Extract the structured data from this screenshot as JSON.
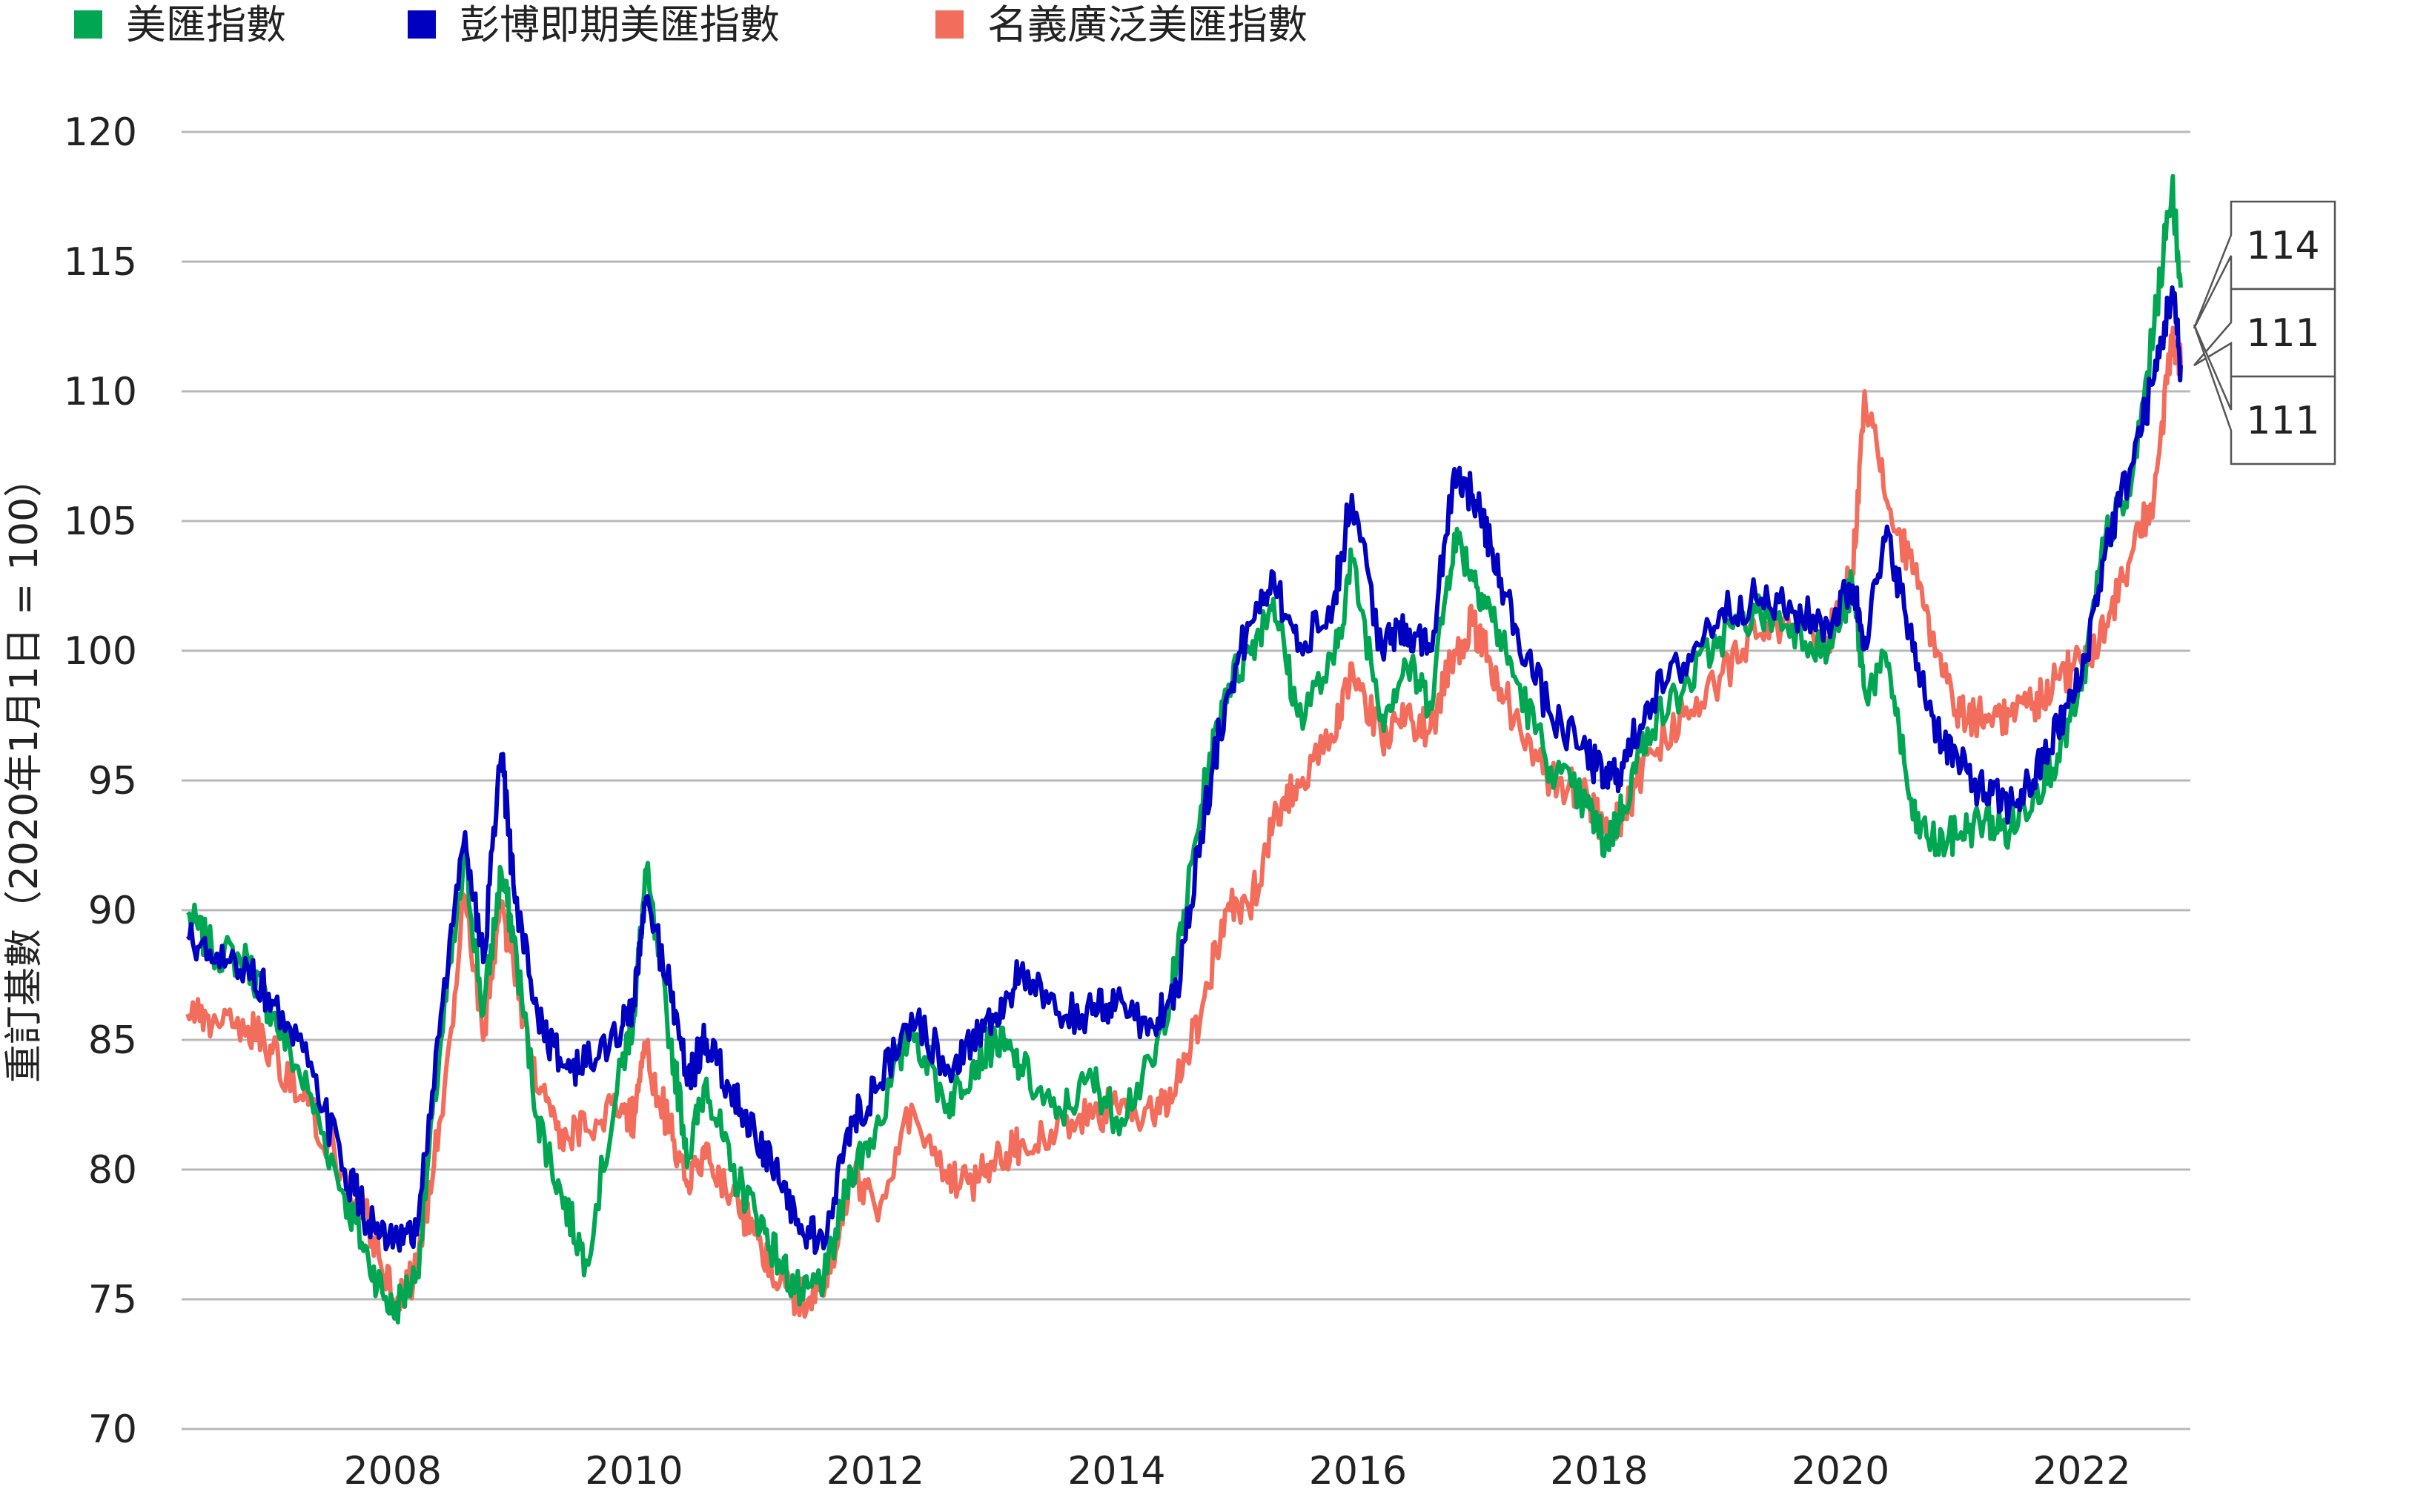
{
  "chart_data": {
    "type": "line",
    "ylabel": "重訂基數（2020年1月1日 = 100）",
    "ylim": [
      70,
      120
    ],
    "yticks": [
      70,
      75,
      80,
      85,
      90,
      95,
      100,
      105,
      110,
      115,
      120
    ],
    "xlim": [
      2006.25,
      2022.9
    ],
    "xticks": [
      2008,
      2010,
      2012,
      2014,
      2016,
      2018,
      2020,
      2022
    ],
    "grid": true,
    "legend_position": "top-left",
    "series": [
      {
        "name": "美匯指數",
        "color": "#00A651",
        "x": [
          2006.3,
          2006.5,
          2006.8,
          2007.0,
          2007.3,
          2007.6,
          2007.8,
          2008.0,
          2008.2,
          2008.4,
          2008.6,
          2008.75,
          2008.9,
          2009.0,
          2009.2,
          2009.4,
          2009.6,
          2009.9,
          2010.0,
          2010.1,
          2010.3,
          2010.45,
          2010.6,
          2010.8,
          2011.0,
          2011.2,
          2011.4,
          2011.6,
          2011.8,
          2012.0,
          2012.3,
          2012.6,
          2012.8,
          2013.0,
          2013.2,
          2013.5,
          2013.8,
          2014.0,
          2014.3,
          2014.5,
          2014.7,
          2014.9,
          2015.1,
          2015.3,
          2015.5,
          2015.8,
          2015.95,
          2016.2,
          2016.4,
          2016.6,
          2016.8,
          2016.95,
          2017.1,
          2017.3,
          2017.6,
          2017.9,
          2018.05,
          2018.2,
          2018.4,
          2018.7,
          2019.0,
          2019.3,
          2019.6,
          2019.9,
          2020.1,
          2020.2,
          2020.4,
          2020.6,
          2020.8,
          2021.0,
          2021.2,
          2021.4,
          2021.6,
          2021.8,
          2022.0,
          2022.2,
          2022.4,
          2022.6,
          2022.75,
          2022.82
        ],
        "values": [
          89.8,
          88.5,
          88.0,
          86.0,
          83.0,
          79.0,
          76.5,
          74.5,
          76.0,
          85.0,
          92.0,
          86.0,
          91.5,
          89.0,
          82.0,
          79.0,
          76.5,
          84.0,
          86.0,
          91.5,
          85.0,
          80.5,
          83.5,
          80.0,
          78.5,
          76.5,
          75.0,
          76.0,
          80.0,
          81.5,
          85.5,
          82.5,
          84.0,
          85.0,
          84.0,
          82.0,
          83.5,
          82.0,
          84.0,
          88.0,
          94.0,
          98.5,
          100.0,
          102.0,
          97.5,
          99.5,
          103.5,
          97.5,
          99.5,
          98.0,
          104.5,
          103.0,
          101.5,
          99.0,
          95.5,
          94.0,
          92.5,
          94.0,
          97.0,
          98.5,
          100.5,
          101.5,
          101.0,
          100.0,
          102.5,
          98.5,
          99.5,
          93.5,
          92.5,
          93.0,
          93.5,
          93.0,
          94.5,
          96.0,
          98.5,
          104.5,
          106.0,
          112.5,
          118.0,
          114.0
        ]
      },
      {
        "name": "彭博即期美匯指數",
        "color": "#0000C0",
        "x": [
          2006.3,
          2006.5,
          2006.8,
          2007.0,
          2007.3,
          2007.6,
          2007.8,
          2008.0,
          2008.2,
          2008.4,
          2008.6,
          2008.75,
          2008.9,
          2009.0,
          2009.2,
          2009.4,
          2009.6,
          2009.9,
          2010.0,
          2010.1,
          2010.3,
          2010.45,
          2010.6,
          2010.8,
          2011.0,
          2011.2,
          2011.4,
          2011.6,
          2011.8,
          2012.0,
          2012.3,
          2012.6,
          2012.8,
          2013.0,
          2013.2,
          2013.5,
          2013.8,
          2014.0,
          2014.3,
          2014.5,
          2014.7,
          2014.9,
          2015.1,
          2015.3,
          2015.5,
          2015.8,
          2015.95,
          2016.2,
          2016.4,
          2016.6,
          2016.8,
          2016.95,
          2017.1,
          2017.3,
          2017.6,
          2017.9,
          2018.05,
          2018.2,
          2018.4,
          2018.7,
          2019.0,
          2019.3,
          2019.6,
          2019.9,
          2020.1,
          2020.2,
          2020.4,
          2020.6,
          2020.8,
          2021.0,
          2021.2,
          2021.4,
          2021.6,
          2021.8,
          2022.0,
          2022.2,
          2022.4,
          2022.6,
          2022.75,
          2022.82
        ],
        "values": [
          89.0,
          88.0,
          87.8,
          86.5,
          84.0,
          80.0,
          78.0,
          77.0,
          77.5,
          86.0,
          93.0,
          88.0,
          96.0,
          91.0,
          86.0,
          84.0,
          84.0,
          85.5,
          86.5,
          90.5,
          87.0,
          83.5,
          85.0,
          83.0,
          81.5,
          79.5,
          77.5,
          77.5,
          82.0,
          83.0,
          86.0,
          84.0,
          85.0,
          86.0,
          87.5,
          86.0,
          86.0,
          86.5,
          85.5,
          87.0,
          93.0,
          98.0,
          101.0,
          103.0,
          100.0,
          102.0,
          106.0,
          100.0,
          101.0,
          100.0,
          107.0,
          106.0,
          104.0,
          101.0,
          97.5,
          96.0,
          95.0,
          95.5,
          98.0,
          99.5,
          101.5,
          102.0,
          101.5,
          101.0,
          102.5,
          100.5,
          104.5,
          100.0,
          97.0,
          95.5,
          94.5,
          94.0,
          95.0,
          97.0,
          99.0,
          104.0,
          107.0,
          110.5,
          114.0,
          111.0
        ]
      },
      {
        "name": "名義廣泛美匯指數",
        "color": "#F26D5B",
        "x": [
          2006.3,
          2006.5,
          2006.8,
          2007.0,
          2007.3,
          2007.6,
          2007.8,
          2008.0,
          2008.2,
          2008.4,
          2008.6,
          2008.75,
          2008.9,
          2009.0,
          2009.2,
          2009.4,
          2009.6,
          2009.9,
          2010.0,
          2010.1,
          2010.3,
          2010.45,
          2010.6,
          2010.8,
          2011.0,
          2011.2,
          2011.4,
          2011.6,
          2011.8,
          2012.0,
          2012.3,
          2012.6,
          2012.8,
          2013.0,
          2013.2,
          2013.5,
          2013.8,
          2014.0,
          2014.3,
          2014.5,
          2014.7,
          2014.9,
          2015.1,
          2015.3,
          2015.5,
          2015.8,
          2015.95,
          2016.2,
          2016.4,
          2016.6,
          2016.8,
          2016.95,
          2017.1,
          2017.3,
          2017.6,
          2017.9,
          2018.05,
          2018.2,
          2018.4,
          2018.7,
          2019.0,
          2019.3,
          2019.6,
          2019.9,
          2020.1,
          2020.2,
          2020.4,
          2020.6,
          2020.8,
          2021.0,
          2021.2,
          2021.4,
          2021.6,
          2021.8,
          2022.0,
          2022.2,
          2022.4,
          2022.6,
          2022.75,
          2022.82
        ],
        "values": [
          86.0,
          85.5,
          85.5,
          84.5,
          82.5,
          80.0,
          78.0,
          75.0,
          76.0,
          82.0,
          90.5,
          85.0,
          90.0,
          88.0,
          83.0,
          81.5,
          81.5,
          82.5,
          82.0,
          84.5,
          81.5,
          79.5,
          81.0,
          79.0,
          77.5,
          75.5,
          75.0,
          75.5,
          80.0,
          78.5,
          82.5,
          79.5,
          79.5,
          80.5,
          81.0,
          81.5,
          82.0,
          82.5,
          82.0,
          83.5,
          86.0,
          90.0,
          90.0,
          93.5,
          95.0,
          96.5,
          99.5,
          96.5,
          97.5,
          97.0,
          100.0,
          101.0,
          99.5,
          97.5,
          95.0,
          94.5,
          93.0,
          93.5,
          96.0,
          97.5,
          99.0,
          100.5,
          101.0,
          100.5,
          103.0,
          110.0,
          105.5,
          103.0,
          100.0,
          97.5,
          97.5,
          97.5,
          98.0,
          99.0,
          99.5,
          101.0,
          103.5,
          106.0,
          112.0,
          111.0
        ]
      }
    ],
    "callouts": [
      "114",
      "111",
      "111"
    ]
  }
}
